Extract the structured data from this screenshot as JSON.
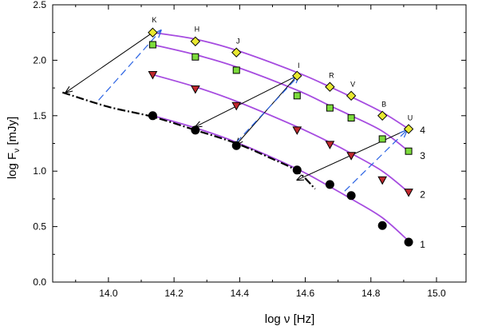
{
  "chart_data": {
    "type": "scatter",
    "xlabel_base": "log ν [Hz]",
    "ylabel_base": "log F",
    "ylabel_sub": "ν",
    "ylabel_unit": " [mJy]",
    "xlim": [
      13.83,
      15.09
    ],
    "ylim": [
      0.0,
      2.5
    ],
    "xticks": [
      14.0,
      14.2,
      14.4,
      14.6,
      14.8,
      15.0
    ],
    "xtick_labels": [
      "14.0",
      "14.2",
      "14.4",
      "14.6",
      "14.8",
      "15.0"
    ],
    "yticks": [
      0.0,
      0.5,
      1.0,
      1.5,
      2.0,
      2.5
    ],
    "ytick_labels": [
      "0.0",
      "0.5",
      "1.0",
      "1.5",
      "2.0",
      "2.5"
    ],
    "band_labels": [
      {
        "text": "K",
        "x": 14.135,
        "y": 2.34
      },
      {
        "text": "H",
        "x": 14.265,
        "y": 2.26
      },
      {
        "text": "J",
        "x": 14.39,
        "y": 2.15
      },
      {
        "text": "I",
        "x": 14.575,
        "y": 1.93
      },
      {
        "text": "R",
        "x": 14.675,
        "y": 1.84
      },
      {
        "text": "V",
        "x": 14.74,
        "y": 1.76
      },
      {
        "text": "B",
        "x": 14.835,
        "y": 1.58
      },
      {
        "text": "U",
        "x": 14.915,
        "y": 1.46
      }
    ],
    "series": [
      {
        "label": "1",
        "marker": "circle",
        "color": "#000000",
        "x": [
          14.135,
          14.265,
          14.39,
          14.575,
          14.675,
          14.74,
          14.835,
          14.915
        ],
        "y": [
          1.5,
          1.37,
          1.23,
          1.01,
          0.88,
          0.78,
          0.51,
          0.36
        ],
        "curve": [
          [
            14.135,
            1.5
          ],
          [
            14.265,
            1.39
          ],
          [
            14.39,
            1.26
          ],
          [
            14.575,
            1.02
          ],
          [
            14.675,
            0.86
          ],
          [
            14.74,
            0.75
          ],
          [
            14.835,
            0.58
          ],
          [
            14.915,
            0.37
          ]
        ],
        "label_pos": [
          14.93,
          0.34
        ]
      },
      {
        "label": "2",
        "marker": "triangle-down",
        "color": "#c0282d",
        "x": [
          14.135,
          14.265,
          14.39,
          14.575,
          14.675,
          14.74,
          14.835,
          14.915
        ],
        "y": [
          1.87,
          1.74,
          1.59,
          1.37,
          1.24,
          1.14,
          0.92,
          0.81
        ],
        "curve": [
          [
            14.135,
            1.87
          ],
          [
            14.265,
            1.76
          ],
          [
            14.39,
            1.63
          ],
          [
            14.575,
            1.4
          ],
          [
            14.675,
            1.26
          ],
          [
            14.74,
            1.16
          ],
          [
            14.835,
            1.0
          ],
          [
            14.915,
            0.81
          ]
        ],
        "label_pos": [
          14.93,
          0.79
        ]
      },
      {
        "label": "3",
        "marker": "square",
        "color": "#7ddc3c",
        "x": [
          14.135,
          14.265,
          14.39,
          14.575,
          14.675,
          14.74,
          14.835,
          14.915
        ],
        "y": [
          2.14,
          2.03,
          1.91,
          1.68,
          1.57,
          1.48,
          1.29,
          1.18
        ],
        "curve": [
          [
            14.135,
            2.14
          ],
          [
            14.265,
            2.05
          ],
          [
            14.39,
            1.94
          ],
          [
            14.575,
            1.73
          ],
          [
            14.675,
            1.59
          ],
          [
            14.74,
            1.5
          ],
          [
            14.835,
            1.36
          ],
          [
            14.915,
            1.18
          ]
        ],
        "label_pos": [
          14.93,
          1.14
        ]
      },
      {
        "label": "4",
        "marker": "diamond",
        "color": "#e8e830",
        "x": [
          14.135,
          14.265,
          14.39,
          14.575,
          14.675,
          14.74,
          14.835,
          14.915
        ],
        "y": [
          2.25,
          2.17,
          2.07,
          1.86,
          1.76,
          1.68,
          1.5,
          1.38
        ],
        "curve": [
          [
            14.135,
            2.25
          ],
          [
            14.265,
            2.19
          ],
          [
            14.39,
            2.09
          ],
          [
            14.575,
            1.89
          ],
          [
            14.675,
            1.76
          ],
          [
            14.74,
            1.67
          ],
          [
            14.835,
            1.53
          ],
          [
            14.915,
            1.38
          ]
        ],
        "label_pos": [
          14.93,
          1.37
        ]
      }
    ],
    "curve_color": "#a64ce0",
    "dashdot_curve": [
      [
        13.86,
        1.71
      ],
      [
        14.0,
        1.58
      ],
      [
        14.135,
        1.49
      ],
      [
        14.265,
        1.37
      ],
      [
        14.39,
        1.25
      ],
      [
        14.5,
        1.11
      ],
      [
        14.575,
        1.0
      ],
      [
        14.63,
        0.84
      ]
    ],
    "black_arrows": [
      {
        "from": [
          14.135,
          2.25
        ],
        "to": [
          13.87,
          1.71
        ]
      },
      {
        "from": [
          14.575,
          1.86
        ],
        "to": [
          14.265,
          1.4
        ]
      },
      {
        "from": [
          14.575,
          1.86
        ],
        "to": [
          14.39,
          1.24
        ]
      },
      {
        "from": [
          14.915,
          1.38
        ],
        "to": [
          14.575,
          0.92
        ]
      }
    ],
    "blue_arrows": [
      {
        "from": [
          13.97,
          1.64
        ],
        "to": [
          14.16,
          2.27
        ]
      },
      {
        "from": [
          14.39,
          1.26
        ],
        "to": [
          14.58,
          1.86
        ]
      },
      {
        "from": [
          14.72,
          0.82
        ],
        "to": [
          14.91,
          1.37
        ]
      }
    ],
    "blue_dashed_color": "#2962e3"
  }
}
